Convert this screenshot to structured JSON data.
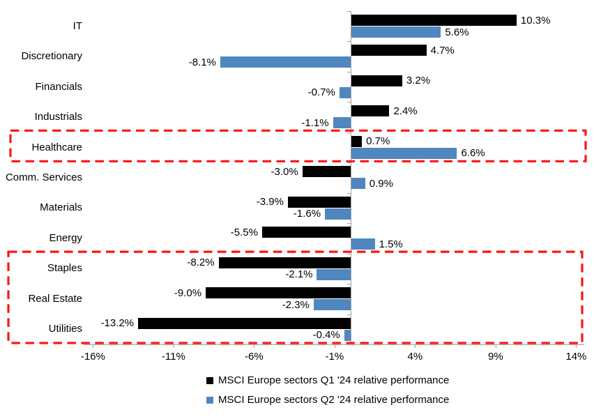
{
  "chart_data": {
    "type": "bar",
    "orientation": "horizontal",
    "title": "",
    "categories": [
      "IT",
      "Discretionary",
      "Financials",
      "Industrials",
      "Healthcare",
      "Comm. Services",
      "Materials",
      "Energy",
      "Staples",
      "Real Estate",
      "Utilities"
    ],
    "series": [
      {
        "name": "MSCI Europe sectors Q1 '24 relative performance",
        "color": "#000000",
        "values": [
          10.3,
          4.7,
          3.2,
          2.4,
          0.7,
          -3.0,
          -3.9,
          -5.5,
          -8.2,
          -9.0,
          -13.2
        ],
        "labels": [
          "10.3%",
          "4.7%",
          "3.2%",
          "2.4%",
          "0.7%",
          "-3.0%",
          "-3.9%",
          "-5.5%",
          "-8.2%",
          "-9.0%",
          "-13.2%"
        ]
      },
      {
        "name": "MSCI Europe sectors Q2 '24 relative performance",
        "color": "#4F87BE",
        "values": [
          5.6,
          -8.1,
          -0.7,
          -1.1,
          6.6,
          0.9,
          -1.6,
          1.5,
          -2.1,
          -2.3,
          -0.4
        ],
        "labels": [
          "5.6%",
          "-8.1%",
          "-0.7%",
          "-1.1%",
          "6.6%",
          "0.9%",
          "-1.6%",
          "1.5%",
          "-2.1%",
          "-2.3%",
          "-0.4%"
        ]
      }
    ],
    "x_ticks": [
      {
        "value": -16,
        "label": "-16%"
      },
      {
        "value": -11,
        "label": "-11%"
      },
      {
        "value": -6,
        "label": "-6%"
      },
      {
        "value": -1,
        "label": "-1%"
      },
      {
        "value": 4,
        "label": "4%"
      },
      {
        "value": 9,
        "label": "9%"
      },
      {
        "value": 14,
        "label": "14%"
      }
    ],
    "xlim": [
      -16.6,
      14.5
    ],
    "grid": false,
    "legend_position": "bottom",
    "axis_color": "#A0A0A0",
    "highlight_color": "#FB1515",
    "highlight_boxes": [
      {
        "name": "healthcare-highlight",
        "categories": [
          "Healthcare"
        ]
      },
      {
        "name": "defensives-highlight",
        "categories": [
          "Staples",
          "Real Estate",
          "Utilities"
        ]
      }
    ]
  }
}
